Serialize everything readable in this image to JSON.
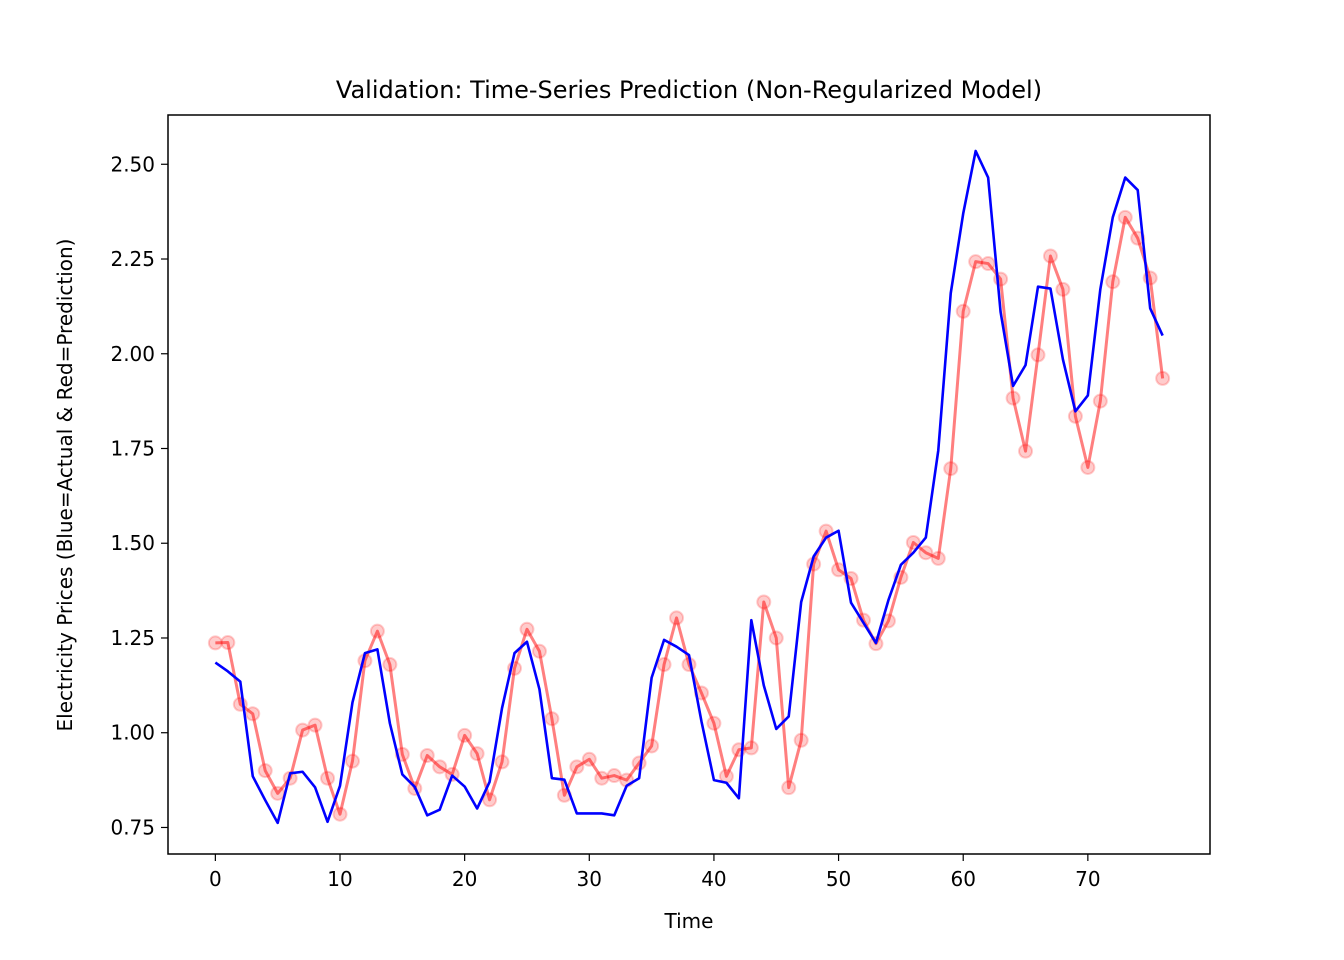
{
  "chart_data": {
    "type": "line",
    "title": "Validation: Time-Series Prediction (Non-Regularized Model)",
    "xlabel": "Time",
    "ylabel": "Electricity Prices (Blue=Actual & Red=Prediction)",
    "xlim": [
      -3.8,
      79.8
    ],
    "ylim": [
      0.68,
      2.63
    ],
    "xticks": [
      0,
      10,
      20,
      30,
      40,
      50,
      60,
      70
    ],
    "yticks": [
      0.75,
      1.0,
      1.25,
      1.5,
      1.75,
      2.0,
      2.25,
      2.5
    ],
    "ytick_labels": [
      "0.75",
      "1.00",
      "1.25",
      "1.50",
      "1.75",
      "2.00",
      "2.25",
      "2.50"
    ],
    "grid": false,
    "x": [
      0,
      1,
      2,
      3,
      4,
      5,
      6,
      7,
      8,
      9,
      10,
      11,
      12,
      13,
      14,
      15,
      16,
      17,
      18,
      19,
      20,
      21,
      22,
      23,
      24,
      25,
      26,
      27,
      28,
      29,
      30,
      31,
      32,
      33,
      34,
      35,
      36,
      37,
      38,
      39,
      40,
      41,
      42,
      43,
      44,
      45,
      46,
      47,
      48,
      49,
      50,
      51,
      52,
      53,
      54,
      55,
      56,
      57,
      58,
      59,
      60,
      61,
      62,
      63,
      64,
      65,
      66,
      67,
      68,
      69,
      70,
      71,
      72,
      73,
      74,
      75,
      76
    ],
    "series": [
      {
        "color": "#0000ff",
        "marker": "none",
        "values": [
          1.185,
          1.162,
          1.135,
          0.885,
          0.822,
          0.762,
          0.893,
          0.897,
          0.856,
          0.765,
          0.86,
          1.08,
          1.21,
          1.22,
          1.025,
          0.89,
          0.857,
          0.782,
          0.797,
          0.887,
          0.858,
          0.8,
          0.87,
          1.065,
          1.21,
          1.24,
          1.115,
          0.88,
          0.876,
          0.787,
          0.787,
          0.787,
          0.782,
          0.86,
          0.88,
          1.145,
          1.245,
          1.227,
          1.205,
          1.03,
          0.875,
          0.868,
          0.827,
          1.297,
          1.125,
          1.01,
          1.043,
          1.345,
          1.465,
          1.515,
          1.533,
          1.343,
          1.29,
          1.237,
          1.35,
          1.443,
          1.475,
          1.515,
          1.745,
          2.16,
          2.37,
          2.535,
          2.465,
          2.11,
          1.915,
          1.97,
          2.177,
          2.172,
          1.985,
          1.848,
          1.89,
          2.17,
          2.36,
          2.465,
          2.432,
          2.12,
          2.048
        ]
      },
      {
        "color": "#ff0000",
        "marker": "circle",
        "values": [
          1.237,
          1.238,
          1.075,
          1.05,
          0.9,
          0.84,
          0.88,
          1.007,
          1.02,
          0.88,
          0.785,
          0.925,
          1.19,
          1.268,
          1.18,
          0.943,
          0.853,
          0.94,
          0.91,
          0.89,
          0.993,
          0.945,
          0.823,
          0.923,
          1.17,
          1.273,
          1.215,
          1.037,
          0.835,
          0.91,
          0.93,
          0.88,
          0.887,
          0.875,
          0.92,
          0.965,
          1.18,
          1.303,
          1.18,
          1.105,
          1.025,
          0.885,
          0.955,
          0.96,
          1.345,
          1.25,
          0.855,
          0.98,
          1.445,
          1.532,
          1.43,
          1.407,
          1.297,
          1.235,
          1.295,
          1.41,
          1.502,
          1.475,
          1.46,
          1.697,
          2.112,
          2.243,
          2.238,
          2.197,
          1.883,
          1.743,
          1.997,
          2.258,
          2.17,
          1.835,
          1.7,
          1.875,
          2.19,
          2.36,
          2.305,
          2.2,
          1.935
        ]
      }
    ]
  }
}
